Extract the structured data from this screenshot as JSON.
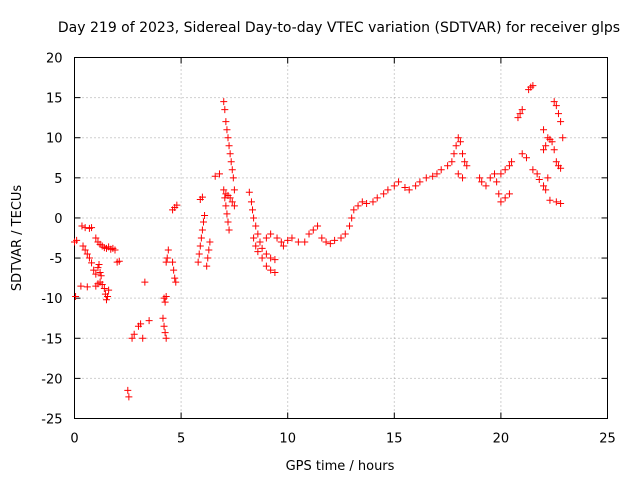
{
  "chart_data": {
    "type": "scatter",
    "title": "Day 219 of 2023, Sidereal Day-to-day VTEC variation (SDTVAR) for receiver glps",
    "xlabel": "GPS time / hours",
    "ylabel": "SDTVAR / TECUs",
    "xlim": [
      0,
      25
    ],
    "ylim": [
      -25,
      20
    ],
    "x_ticks": [
      0,
      5,
      10,
      15,
      20,
      25
    ],
    "y_ticks": [
      -25,
      -20,
      -15,
      -10,
      -5,
      0,
      5,
      10,
      15,
      20
    ],
    "x_tick_labels": [
      "0",
      "5",
      "10",
      "15",
      "20",
      "25"
    ],
    "y_tick_labels": [
      "-25",
      "-20",
      "-15",
      "-10",
      "-5",
      "0",
      "5",
      "10",
      "15",
      "20"
    ],
    "grid": true,
    "marker": "plus",
    "color": "#ff0000",
    "series": [
      {
        "name": "SDTVAR",
        "points": [
          [
            0.0,
            -3.0
          ],
          [
            0.05,
            -9.8
          ],
          [
            0.1,
            -2.8
          ],
          [
            0.3,
            -8.5
          ],
          [
            0.35,
            -1.0
          ],
          [
            0.4,
            -3.5
          ],
          [
            0.5,
            -1.2
          ],
          [
            0.6,
            -8.6
          ],
          [
            0.7,
            -1.3
          ],
          [
            0.8,
            -1.2
          ],
          [
            0.5,
            -4.0
          ],
          [
            0.6,
            -4.5
          ],
          [
            0.7,
            -5.0
          ],
          [
            0.8,
            -5.6
          ],
          [
            0.9,
            -6.5
          ],
          [
            1.0,
            -7.0
          ],
          [
            1.0,
            -2.5
          ],
          [
            1.1,
            -3.0
          ],
          [
            1.2,
            -3.3
          ],
          [
            1.3,
            -3.5
          ],
          [
            1.4,
            -3.7
          ],
          [
            1.5,
            -3.8
          ],
          [
            1.6,
            -3.6
          ],
          [
            1.7,
            -3.9
          ],
          [
            1.8,
            -3.8
          ],
          [
            1.9,
            -4.0
          ],
          [
            1.0,
            -8.5
          ],
          [
            1.1,
            -8.2
          ],
          [
            1.2,
            -8.0
          ],
          [
            1.3,
            -8.3
          ],
          [
            1.4,
            -8.8
          ],
          [
            1.45,
            -9.5
          ],
          [
            1.5,
            -10.2
          ],
          [
            1.55,
            -9.8
          ],
          [
            1.6,
            -9.0
          ],
          [
            1.1,
            -6.2
          ],
          [
            1.15,
            -5.8
          ],
          [
            1.2,
            -6.8
          ],
          [
            1.25,
            -7.2
          ],
          [
            2.0,
            -5.5
          ],
          [
            2.1,
            -5.4
          ],
          [
            2.5,
            -21.5
          ],
          [
            2.55,
            -22.3
          ],
          [
            2.7,
            -15.0
          ],
          [
            2.8,
            -14.5
          ],
          [
            3.0,
            -13.5
          ],
          [
            3.1,
            -13.2
          ],
          [
            3.2,
            -15.0
          ],
          [
            3.3,
            -8.0
          ],
          [
            3.5,
            -12.8
          ],
          [
            4.15,
            -12.5
          ],
          [
            4.2,
            -13.5
          ],
          [
            4.25,
            -14.3
          ],
          [
            4.3,
            -15.0
          ],
          [
            4.2,
            -10.0
          ],
          [
            4.25,
            -10.5
          ],
          [
            4.3,
            -9.8
          ],
          [
            4.3,
            -5.5
          ],
          [
            4.35,
            -5.0
          ],
          [
            4.4,
            -4.0
          ],
          [
            4.6,
            -5.5
          ],
          [
            4.65,
            -6.5
          ],
          [
            4.7,
            -7.5
          ],
          [
            4.75,
            -8.0
          ],
          [
            4.6,
            1.0
          ],
          [
            4.7,
            1.3
          ],
          [
            4.8,
            1.6
          ],
          [
            5.8,
            -5.5
          ],
          [
            5.85,
            -4.5
          ],
          [
            5.9,
            -3.5
          ],
          [
            5.95,
            -2.5
          ],
          [
            6.0,
            -1.5
          ],
          [
            6.05,
            -0.5
          ],
          [
            6.1,
            0.3
          ],
          [
            6.2,
            -6.0
          ],
          [
            6.25,
            -5.0
          ],
          [
            6.3,
            -4.0
          ],
          [
            6.35,
            -3.0
          ],
          [
            5.9,
            2.3
          ],
          [
            6.0,
            2.6
          ],
          [
            6.6,
            5.2
          ],
          [
            6.8,
            5.5
          ],
          [
            7.0,
            14.5
          ],
          [
            7.05,
            13.5
          ],
          [
            7.1,
            12.0
          ],
          [
            7.15,
            11.0
          ],
          [
            7.2,
            10.0
          ],
          [
            7.25,
            9.0
          ],
          [
            7.3,
            8.0
          ],
          [
            7.35,
            7.0
          ],
          [
            7.4,
            6.0
          ],
          [
            7.45,
            5.0
          ],
          [
            7.0,
            3.5
          ],
          [
            7.05,
            2.5
          ],
          [
            7.1,
            1.5
          ],
          [
            7.15,
            0.5
          ],
          [
            7.2,
            -0.5
          ],
          [
            7.25,
            -1.5
          ],
          [
            7.1,
            3.0
          ],
          [
            7.2,
            2.8
          ],
          [
            7.3,
            2.5
          ],
          [
            7.4,
            2.0
          ],
          [
            7.5,
            1.5
          ],
          [
            7.5,
            3.5
          ],
          [
            8.2,
            3.2
          ],
          [
            8.3,
            2.0
          ],
          [
            8.35,
            1.0
          ],
          [
            8.4,
            0.0
          ],
          [
            8.5,
            -1.0
          ],
          [
            8.6,
            -2.0
          ],
          [
            8.7,
            -3.0
          ],
          [
            8.8,
            -3.8
          ],
          [
            9.0,
            -4.5
          ],
          [
            9.2,
            -5.0
          ],
          [
            9.4,
            -5.2
          ],
          [
            9.0,
            -6.0
          ],
          [
            9.2,
            -6.5
          ],
          [
            9.4,
            -6.8
          ],
          [
            8.4,
            -2.5
          ],
          [
            8.5,
            -3.5
          ],
          [
            8.6,
            -4.2
          ],
          [
            8.8,
            -5.0
          ],
          [
            9.0,
            -2.5
          ],
          [
            9.2,
            -2.0
          ],
          [
            9.5,
            -2.5
          ],
          [
            9.7,
            -3.0
          ],
          [
            9.8,
            -3.5
          ],
          [
            10.0,
            -2.8
          ],
          [
            10.2,
            -2.5
          ],
          [
            10.5,
            -3.0
          ],
          [
            10.8,
            -3.0
          ],
          [
            11.0,
            -2.0
          ],
          [
            11.2,
            -1.5
          ],
          [
            11.4,
            -1.0
          ],
          [
            11.6,
            -2.5
          ],
          [
            11.8,
            -3.0
          ],
          [
            12.0,
            -3.2
          ],
          [
            12.2,
            -2.8
          ],
          [
            12.5,
            -2.5
          ],
          [
            12.7,
            -2.0
          ],
          [
            12.9,
            -1.0
          ],
          [
            13.0,
            0.0
          ],
          [
            13.1,
            1.0
          ],
          [
            13.3,
            1.5
          ],
          [
            13.5,
            2.0
          ],
          [
            13.7,
            1.8
          ],
          [
            14.0,
            2.0
          ],
          [
            14.2,
            2.5
          ],
          [
            14.5,
            3.0
          ],
          [
            14.7,
            3.5
          ],
          [
            15.0,
            4.0
          ],
          [
            15.2,
            4.5
          ],
          [
            15.5,
            3.8
          ],
          [
            15.7,
            3.5
          ],
          [
            16.0,
            4.0
          ],
          [
            16.2,
            4.5
          ],
          [
            16.5,
            5.0
          ],
          [
            16.8,
            5.2
          ],
          [
            17.0,
            5.5
          ],
          [
            17.2,
            6.0
          ],
          [
            17.5,
            6.5
          ],
          [
            17.7,
            7.0
          ],
          [
            17.8,
            8.0
          ],
          [
            17.9,
            9.0
          ],
          [
            18.0,
            10.0
          ],
          [
            18.1,
            9.5
          ],
          [
            18.2,
            8.0
          ],
          [
            18.3,
            7.0
          ],
          [
            18.4,
            6.5
          ],
          [
            18.0,
            5.5
          ],
          [
            18.2,
            5.0
          ],
          [
            19.0,
            5.0
          ],
          [
            19.1,
            4.5
          ],
          [
            19.3,
            4.0
          ],
          [
            19.5,
            5.0
          ],
          [
            19.7,
            5.5
          ],
          [
            19.8,
            4.5
          ],
          [
            19.9,
            3.0
          ],
          [
            20.0,
            2.0
          ],
          [
            20.2,
            2.5
          ],
          [
            20.4,
            3.0
          ],
          [
            20.0,
            5.5
          ],
          [
            20.2,
            6.0
          ],
          [
            20.4,
            6.5
          ],
          [
            20.5,
            7.0
          ],
          [
            20.8,
            12.5
          ],
          [
            20.9,
            13.0
          ],
          [
            21.0,
            13.5
          ],
          [
            21.3,
            16.0
          ],
          [
            21.4,
            16.3
          ],
          [
            21.5,
            16.5
          ],
          [
            21.0,
            8.0
          ],
          [
            21.2,
            7.5
          ],
          [
            21.5,
            6.0
          ],
          [
            21.7,
            5.5
          ],
          [
            22.0,
            8.5
          ],
          [
            22.1,
            9.0
          ],
          [
            22.0,
            11.0
          ],
          [
            22.2,
            10.0
          ],
          [
            22.3,
            9.8
          ],
          [
            22.4,
            9.5
          ],
          [
            22.5,
            8.5
          ],
          [
            22.6,
            7.0
          ],
          [
            22.7,
            6.5
          ],
          [
            22.8,
            6.2
          ],
          [
            22.5,
            14.5
          ],
          [
            22.6,
            14.0
          ],
          [
            22.7,
            13.0
          ],
          [
            22.8,
            12.0
          ],
          [
            22.9,
            10.0
          ],
          [
            22.0,
            4.0
          ],
          [
            22.1,
            3.5
          ],
          [
            22.3,
            2.2
          ],
          [
            22.6,
            2.0
          ],
          [
            22.8,
            1.8
          ],
          [
            21.8,
            4.8
          ],
          [
            22.2,
            5.0
          ]
        ]
      }
    ]
  }
}
